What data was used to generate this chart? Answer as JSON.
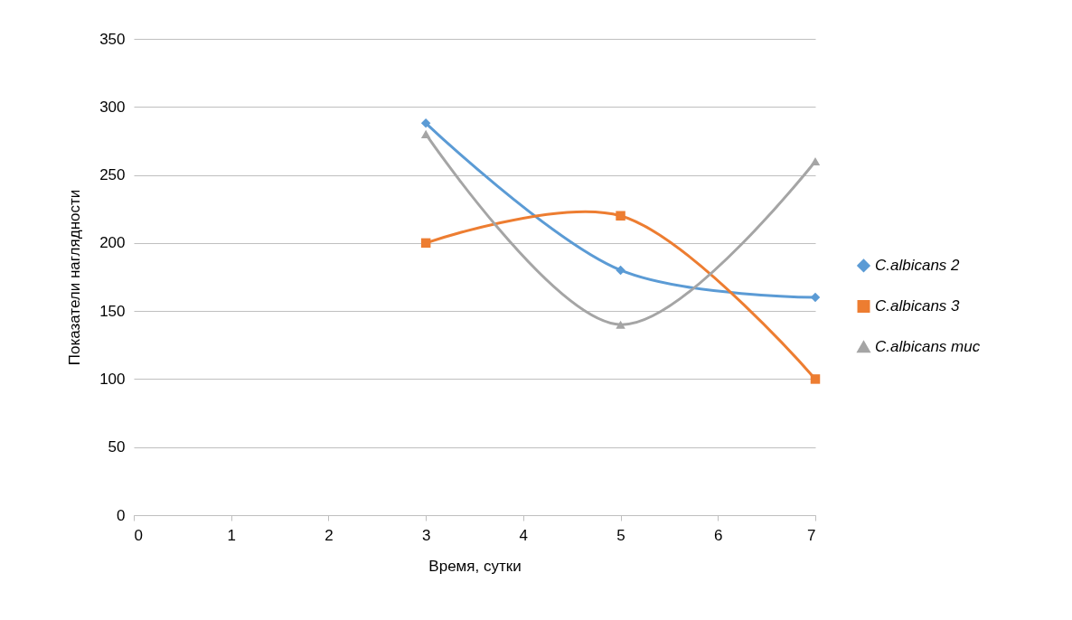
{
  "chart_data": {
    "type": "line",
    "xlabel": "Время, сутки",
    "ylabel": "Показатели наглядности",
    "x": [
      3,
      5,
      7
    ],
    "xlim": [
      0,
      7
    ],
    "xticks": [
      0,
      1,
      2,
      3,
      4,
      5,
      6,
      7
    ],
    "ylim": [
      0,
      350
    ],
    "yticks": [
      0,
      50,
      100,
      150,
      200,
      250,
      300,
      350
    ],
    "grid": "y",
    "legend": "right",
    "series": [
      {
        "name": "C.albicans 2",
        "color": "#5b9bd5",
        "marker": "diamond",
        "values": [
          288,
          180,
          160
        ]
      },
      {
        "name": "C.albicans 3",
        "color": "#ed7d31",
        "marker": "square",
        "values": [
          200,
          220,
          100
        ]
      },
      {
        "name": "C.albicans mис",
        "color": "#a5a5a5",
        "marker": "triangle",
        "values": [
          280,
          140,
          260
        ]
      }
    ]
  }
}
